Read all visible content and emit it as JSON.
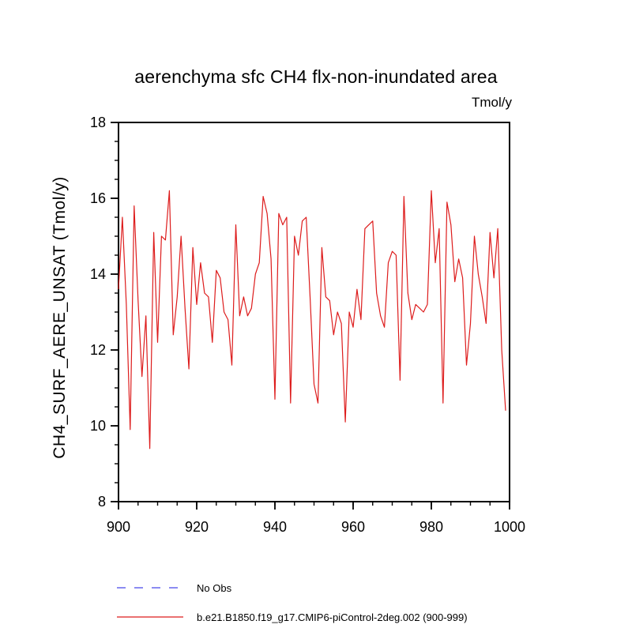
{
  "title": "aerenchyma sfc CH4 flx-non-inundated area",
  "units_label": "Tmol/y",
  "y_axis_label": "CH4_SURF_AERE_UNSAT  (Tmol/y)",
  "legend": [
    {
      "label": "No Obs",
      "style": "dashed",
      "color": "#6666ee"
    },
    {
      "label": "b.e21.B1850.f19_g17.CMIP6-piControl-2deg.002 (900-999)",
      "style": "solid",
      "color": "#dd1c1c"
    }
  ],
  "chart_data": {
    "type": "line",
    "title": "aerenchyma sfc CH4 flx-non-inundated area",
    "xlabel": "",
    "ylabel": "CH4_SURF_AERE_UNSAT  (Tmol/y)",
    "units": "Tmol/y",
    "xlim": [
      900,
      1000
    ],
    "ylim": [
      8,
      18
    ],
    "x_ticks_major": [
      900,
      920,
      940,
      960,
      980,
      1000
    ],
    "x_minor_step": 5,
    "y_ticks_major": [
      8,
      10,
      12,
      14,
      16,
      18
    ],
    "y_minor_step": 0.5,
    "grid": false,
    "legend_position": "bottom-left",
    "line_color": "#dd1c1c",
    "x": [
      900,
      901,
      902,
      903,
      904,
      905,
      906,
      907,
      908,
      909,
      910,
      911,
      912,
      913,
      914,
      915,
      916,
      917,
      918,
      919,
      920,
      921,
      922,
      923,
      924,
      925,
      926,
      927,
      928,
      929,
      930,
      931,
      932,
      933,
      934,
      935,
      936,
      937,
      938,
      939,
      940,
      941,
      942,
      943,
      944,
      945,
      946,
      947,
      948,
      949,
      950,
      951,
      952,
      953,
      954,
      955,
      956,
      957,
      958,
      959,
      960,
      961,
      962,
      963,
      964,
      965,
      966,
      967,
      968,
      969,
      970,
      971,
      972,
      973,
      974,
      975,
      976,
      977,
      978,
      979,
      980,
      981,
      982,
      983,
      984,
      985,
      986,
      987,
      988,
      989,
      990,
      991,
      992,
      993,
      994,
      995,
      996,
      997,
      998,
      999
    ],
    "series": [
      {
        "name": "b.e21.B1850.f19_g17.CMIP6-piControl-2deg.002 (900-999)",
        "values": [
          13.6,
          15.5,
          13.2,
          9.9,
          15.8,
          13.3,
          11.3,
          12.9,
          9.4,
          15.1,
          12.2,
          15.0,
          14.9,
          16.2,
          12.4,
          13.4,
          15.0,
          13.1,
          11.5,
          14.7,
          13.2,
          14.3,
          13.5,
          13.4,
          12.2,
          14.1,
          13.9,
          13.0,
          12.8,
          11.6,
          15.3,
          12.9,
          13.4,
          12.9,
          13.1,
          14.0,
          14.3,
          16.05,
          15.6,
          14.4,
          10.7,
          15.6,
          15.3,
          15.5,
          10.6,
          15.0,
          14.5,
          15.4,
          15.5,
          13.4,
          11.1,
          10.6,
          14.7,
          13.4,
          13.3,
          12.4,
          13.0,
          12.7,
          10.1,
          13.0,
          12.6,
          13.6,
          12.8,
          15.2,
          15.3,
          15.4,
          13.5,
          12.9,
          12.6,
          14.3,
          14.6,
          14.5,
          11.2,
          16.05,
          13.5,
          12.8,
          13.2,
          13.1,
          13.0,
          13.2,
          16.2,
          14.3,
          15.2,
          10.6,
          15.9,
          15.3,
          13.8,
          14.4,
          13.9,
          11.6,
          12.7,
          15.0,
          14.0,
          13.4,
          12.7,
          15.1,
          13.9,
          15.2,
          12.0,
          10.4
        ]
      }
    ]
  }
}
